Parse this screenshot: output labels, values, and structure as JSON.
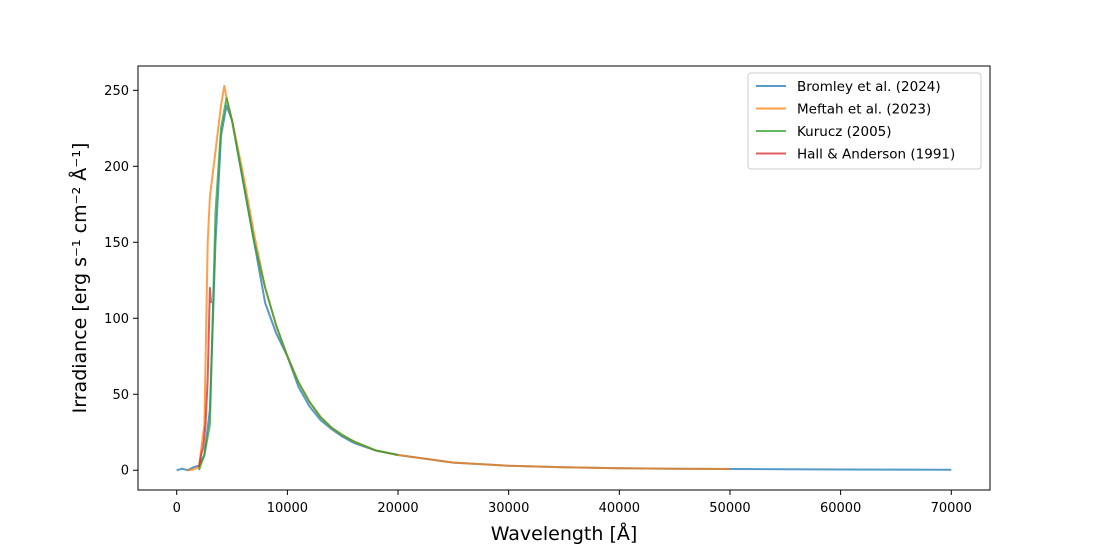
{
  "chart_data": {
    "type": "line",
    "xlabel": "Wavelength [Å]",
    "ylabel": "Irradiance [erg s⁻¹ cm⁻² Å⁻¹]",
    "xlim": [
      -3500,
      73500
    ],
    "ylim": [
      -13,
      266
    ],
    "xticks": [
      0,
      10000,
      20000,
      30000,
      40000,
      50000,
      60000,
      70000
    ],
    "yticks": [
      0,
      50,
      100,
      150,
      200,
      250
    ],
    "grid": false,
    "legend_position": "top-right",
    "series": [
      {
        "name": "Bromley et al. (2024)",
        "color": "#1f77b4",
        "points": [
          [
            0,
            0
          ],
          [
            500,
            1
          ],
          [
            1000,
            0
          ],
          [
            1500,
            2
          ],
          [
            2000,
            3
          ],
          [
            2500,
            10
          ],
          [
            3000,
            40
          ],
          [
            3500,
            150
          ],
          [
            4000,
            220
          ],
          [
            4500,
            240
          ],
          [
            5000,
            230
          ],
          [
            6000,
            190
          ],
          [
            7000,
            150
          ],
          [
            8000,
            110
          ],
          [
            9000,
            90
          ],
          [
            10000,
            75
          ],
          [
            11000,
            55
          ],
          [
            12000,
            42
          ],
          [
            13000,
            33
          ],
          [
            14000,
            27
          ],
          [
            15000,
            22
          ],
          [
            16000,
            18
          ],
          [
            18000,
            13
          ],
          [
            20000,
            10
          ],
          [
            25000,
            5
          ],
          [
            30000,
            3
          ],
          [
            35000,
            2
          ],
          [
            40000,
            1.3
          ],
          [
            45000,
            1
          ],
          [
            50000,
            0.8
          ],
          [
            55000,
            0.6
          ],
          [
            60000,
            0.5
          ],
          [
            65000,
            0.4
          ],
          [
            70000,
            0.3
          ]
        ]
      },
      {
        "name": "Meftah et al. (2023)",
        "color": "#ff7f0e",
        "points": [
          [
            1000,
            0
          ],
          [
            1500,
            0.5
          ],
          [
            2000,
            2
          ],
          [
            2500,
            30
          ],
          [
            2800,
            150
          ],
          [
            3000,
            180
          ],
          [
            3500,
            210
          ],
          [
            4000,
            240
          ],
          [
            4300,
            253
          ],
          [
            4500,
            245
          ],
          [
            5000,
            230
          ],
          [
            6000,
            195
          ],
          [
            7000,
            155
          ],
          [
            8000,
            120
          ],
          [
            9000,
            95
          ],
          [
            10000,
            75
          ],
          [
            11000,
            58
          ],
          [
            12000,
            45
          ],
          [
            13000,
            35
          ],
          [
            14000,
            28
          ],
          [
            15000,
            23
          ],
          [
            16000,
            19
          ],
          [
            18000,
            13
          ],
          [
            20000,
            10
          ],
          [
            25000,
            5
          ],
          [
            30000,
            3
          ],
          [
            35000,
            2
          ],
          [
            40000,
            1.3
          ],
          [
            45000,
            1
          ],
          [
            50000,
            0.8
          ]
        ]
      },
      {
        "name": "Kurucz (2005)",
        "color": "#2ca02c",
        "points": [
          [
            2000,
            0
          ],
          [
            2500,
            10
          ],
          [
            3000,
            30
          ],
          [
            3500,
            170
          ],
          [
            4000,
            225
          ],
          [
            4500,
            245
          ],
          [
            5000,
            230
          ],
          [
            6000,
            190
          ],
          [
            7000,
            150
          ],
          [
            8000,
            120
          ],
          [
            9000,
            95
          ],
          [
            10000,
            75
          ],
          [
            11000,
            58
          ],
          [
            12000,
            45
          ],
          [
            13000,
            35
          ],
          [
            14000,
            28
          ],
          [
            15000,
            23
          ],
          [
            16000,
            19
          ],
          [
            18000,
            13
          ],
          [
            20000,
            10
          ]
        ]
      },
      {
        "name": "Hall & Anderson (1991)",
        "color": "#d62728",
        "points": [
          [
            2000,
            2
          ],
          [
            2200,
            10
          ],
          [
            2400,
            15
          ],
          [
            2600,
            30
          ],
          [
            2800,
            60
          ],
          [
            3000,
            120
          ],
          [
            3100,
            110
          ]
        ]
      }
    ]
  }
}
